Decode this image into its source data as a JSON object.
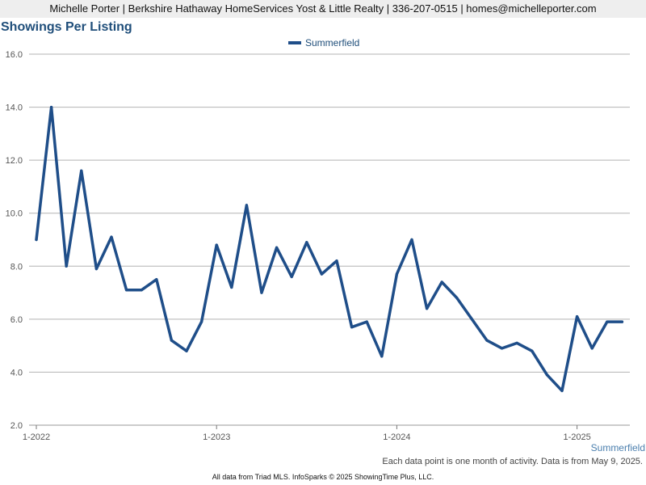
{
  "header": {
    "text": "Michelle Porter | Berkshire Hathaway HomeServices Yost & Little Realty | 336-207-0515 | homes@michelleporter.com"
  },
  "chart_data": {
    "type": "line",
    "title": "Showings Per Listing",
    "xlabel": "",
    "ylabel": "",
    "ylim": [
      2.0,
      16.0
    ],
    "yticks": [
      "2.0",
      "4.0",
      "6.0",
      "8.0",
      "10.0",
      "12.0",
      "14.0",
      "16.0"
    ],
    "xtick_labels": [
      {
        "label": "1-2022",
        "index": 0
      },
      {
        "label": "1-2023",
        "index": 12
      },
      {
        "label": "1-2024",
        "index": 24
      },
      {
        "label": "1-2025",
        "index": 36
      }
    ],
    "x": [
      "1-2022",
      "2-2022",
      "3-2022",
      "4-2022",
      "5-2022",
      "6-2022",
      "7-2022",
      "8-2022",
      "9-2022",
      "10-2022",
      "11-2022",
      "12-2022",
      "1-2023",
      "2-2023",
      "3-2023",
      "4-2023",
      "5-2023",
      "6-2023",
      "7-2023",
      "8-2023",
      "9-2023",
      "10-2023",
      "11-2023",
      "12-2023",
      "1-2024",
      "2-2024",
      "3-2024",
      "4-2024",
      "5-2024",
      "6-2024",
      "7-2024",
      "8-2024",
      "9-2024",
      "10-2024",
      "11-2024",
      "12-2024",
      "1-2025",
      "2-2025",
      "3-2025",
      "4-2025"
    ],
    "series": [
      {
        "name": "Summerfield",
        "color": "#1f4e89",
        "values": [
          9.0,
          14.0,
          8.0,
          11.6,
          7.9,
          9.1,
          7.1,
          7.1,
          7.5,
          5.2,
          4.8,
          5.9,
          8.8,
          7.2,
          10.3,
          7.0,
          8.7,
          7.6,
          8.9,
          7.7,
          8.2,
          5.7,
          5.9,
          4.6,
          7.7,
          9.0,
          6.4,
          7.4,
          6.8,
          6.0,
          5.2,
          4.9,
          5.1,
          4.8,
          3.9,
          3.3,
          6.1,
          4.9,
          5.9,
          5.9
        ]
      }
    ],
    "grid": true,
    "legend_position": "top-center"
  },
  "note": "Each data point is one month of activity. Data is from May 9, 2025.",
  "footer": "All data from Triad MLS. InfoSparks © 2025 ShowingTime Plus, LLC."
}
